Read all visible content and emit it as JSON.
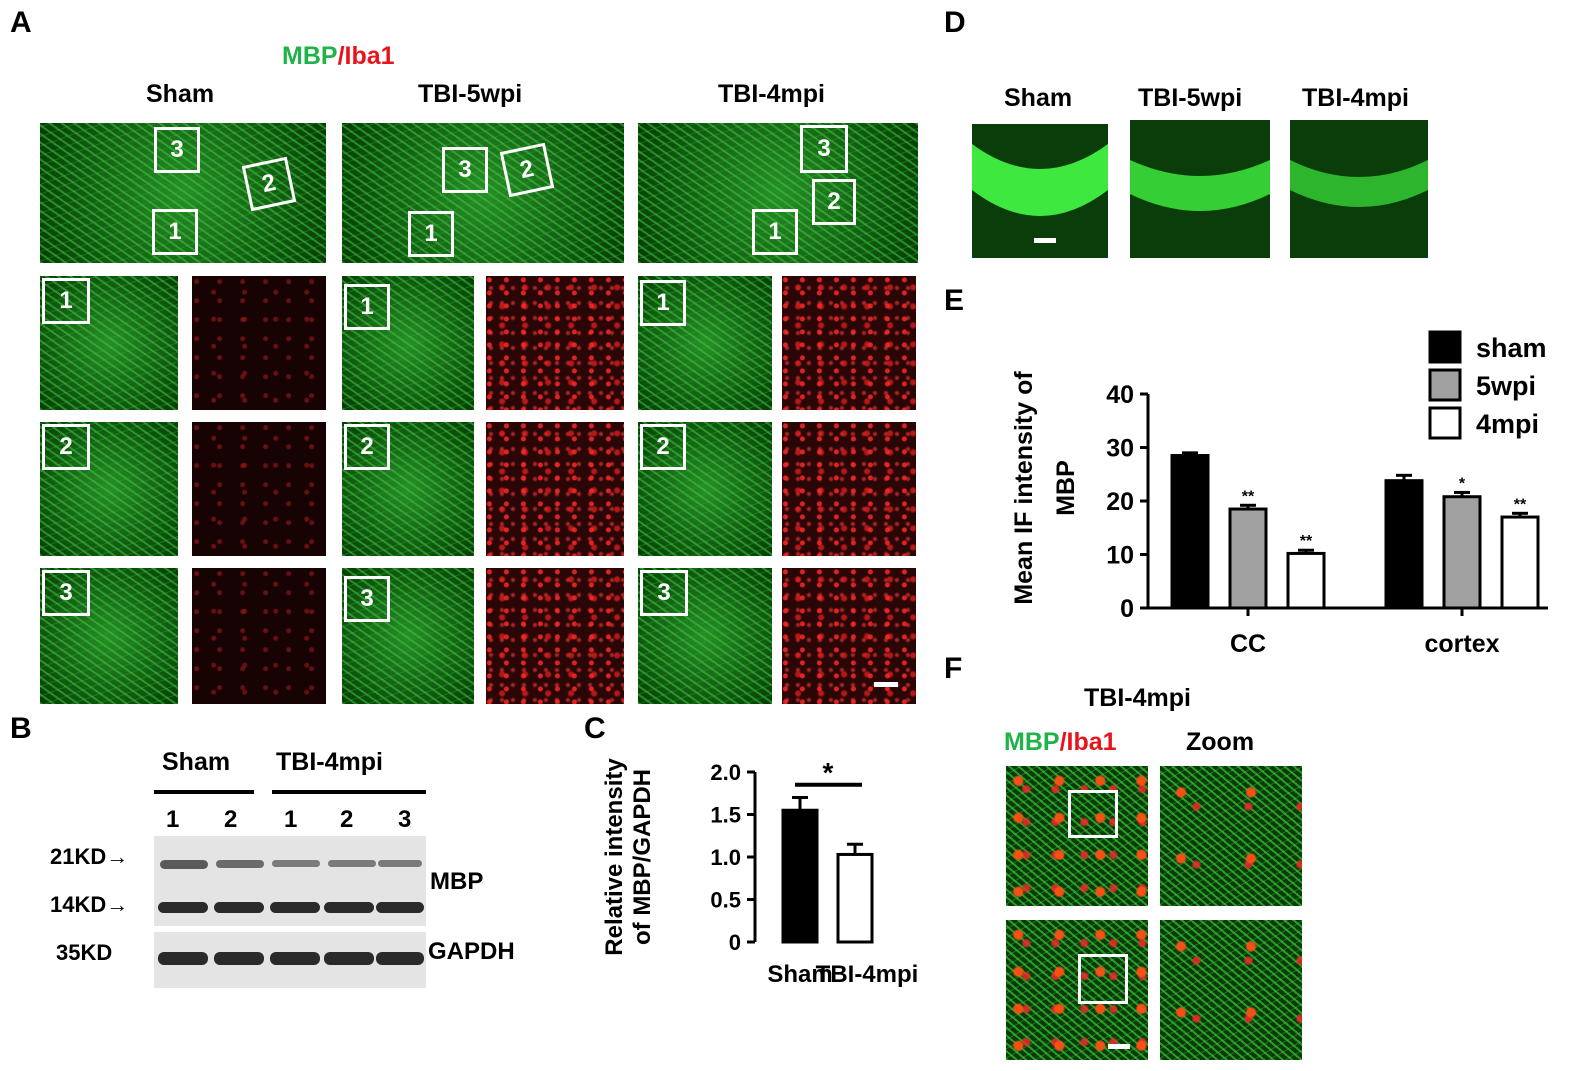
{
  "panels": {
    "A": {
      "letter": "A",
      "stain_mbp": "MBP",
      "stain_slash": "/",
      "stain_iba1": "Iba1",
      "columns": [
        "Sham",
        "TBI-5wpi",
        "TBI-4mpi"
      ],
      "region_labels": [
        "1",
        "2",
        "3"
      ]
    },
    "B": {
      "letter": "B",
      "group_sham": "Sham",
      "group_tbi": "TBI-4mpi",
      "lanes": [
        "1",
        "2",
        "1",
        "2",
        "3"
      ],
      "marker_21": "21KD",
      "marker_14": "14KD",
      "marker_35": "35KD",
      "protein_mbp": "MBP",
      "protein_gapdh": "GAPDH"
    },
    "C": {
      "letter": "C"
    },
    "D": {
      "letter": "D",
      "columns": [
        "Sham",
        "TBI-5wpi",
        "TBI-4mpi"
      ]
    },
    "E": {
      "letter": "E"
    },
    "F": {
      "letter": "F",
      "title": "TBI-4mpi",
      "stain_mbp": "MBP",
      "stain_slash": "/",
      "stain_iba1": "Iba1",
      "zoom_label": "Zoom"
    }
  },
  "colors": {
    "green": "#1fb34a",
    "red": "#e8141c",
    "black": "#000000",
    "gray": "#a0a0a0",
    "white": "#ffffff"
  },
  "chart_data": [
    {
      "panel": "C",
      "type": "bar",
      "categories": [
        "Sham",
        "TBI-4mpi"
      ],
      "values": [
        1.55,
        1.03
      ],
      "errors": [
        0.15,
        0.12
      ],
      "bar_colors": [
        "#000000",
        "#ffffff"
      ],
      "ylabel": "Relative intensity of MBP/GAPDH",
      "ylim": [
        0,
        2.0
      ],
      "yticks": [
        "0",
        "0.5",
        "1.0",
        "1.5",
        "2.0"
      ],
      "significance": "*"
    },
    {
      "panel": "E",
      "type": "bar",
      "categories": [
        "CC",
        "cortex"
      ],
      "series": [
        {
          "name": "sham",
          "color": "#000000",
          "values": [
            28.5,
            23.8
          ],
          "errors": [
            0.5,
            1.0
          ],
          "stars": [
            "",
            ""
          ]
        },
        {
          "name": "5wpi",
          "color": "#a0a0a0",
          "values": [
            18.5,
            20.8
          ],
          "errors": [
            0.7,
            0.8
          ],
          "stars": [
            "**",
            "*"
          ]
        },
        {
          "name": "4mpi",
          "color": "#ffffff",
          "values": [
            10.2,
            17.0
          ],
          "errors": [
            0.6,
            0.7
          ],
          "stars": [
            "**",
            "**"
          ]
        }
      ],
      "ylabel": "Mean IF intensity of MBP",
      "ylim": [
        0,
        40
      ],
      "yticks": [
        "0",
        "10",
        "20",
        "30",
        "40"
      ],
      "legend": "top-right"
    }
  ]
}
